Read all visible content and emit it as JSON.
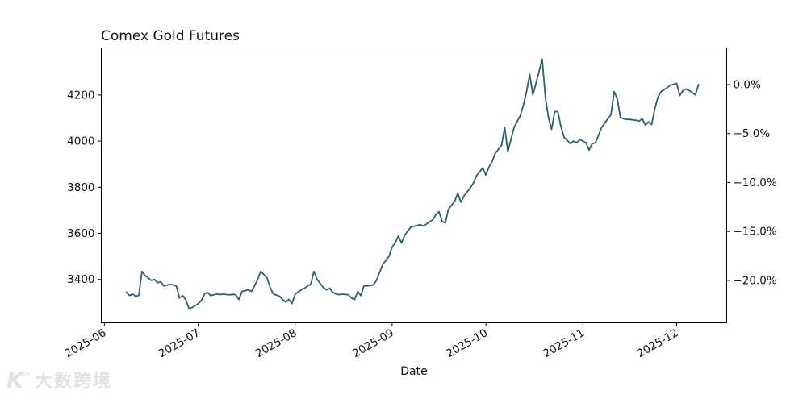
{
  "title": "Comex Gold Futures",
  "watermark": {
    "logo": "K",
    "logo_sup": "°°",
    "text": "大数跨境"
  },
  "chart_data": {
    "type": "line",
    "title": "Comex Gold Futures",
    "xlabel": "Date",
    "ylabel_left": "",
    "ylabel_right": "",
    "grid": false,
    "legend": null,
    "line_color": "#2e5f6e",
    "line_width": 1.8,
    "axis_color": "#000000",
    "tick_label_color": "#111111",
    "xlim": [
      "2025-05-31",
      "2025-12-17"
    ],
    "ylim": [
      3212,
      4404
    ],
    "x_ticks": [
      {
        "date": "2025-06-01",
        "label": "2025-06"
      },
      {
        "date": "2025-07-01",
        "label": "2025-07"
      },
      {
        "date": "2025-08-01",
        "label": "2025-08"
      },
      {
        "date": "2025-09-01",
        "label": "2025-09"
      },
      {
        "date": "2025-10-01",
        "label": "2025-10"
      },
      {
        "date": "2025-11-01",
        "label": "2025-11"
      },
      {
        "date": "2025-12-01",
        "label": "2025-12"
      }
    ],
    "y_ticks_left": [
      3400,
      3600,
      3800,
      4000,
      4200
    ],
    "y_ticks_right": [
      {
        "pct": 0,
        "label": "0.0%"
      },
      {
        "pct": -5,
        "label": "−5.0%"
      },
      {
        "pct": -10,
        "label": "−10.0%"
      },
      {
        "pct": -15,
        "label": "−15.0%"
      },
      {
        "pct": -20,
        "label": "−20.0%"
      }
    ],
    "right_axis_reference_price": 4245,
    "x": [
      "2025-06-08",
      "2025-06-09",
      "2025-06-10",
      "2025-06-11",
      "2025-06-12",
      "2025-06-13",
      "2025-06-14",
      "2025-06-16",
      "2025-06-17",
      "2025-06-18",
      "2025-06-19",
      "2025-06-20",
      "2025-06-22",
      "2025-06-23",
      "2025-06-24",
      "2025-06-25",
      "2025-06-26",
      "2025-06-27",
      "2025-06-28",
      "2025-06-29",
      "2025-07-01",
      "2025-07-02",
      "2025-07-03",
      "2025-07-04",
      "2025-07-05",
      "2025-07-07",
      "2025-07-08",
      "2025-07-09",
      "2025-07-11",
      "2025-07-12",
      "2025-07-13",
      "2025-07-14",
      "2025-07-15",
      "2025-07-17",
      "2025-07-18",
      "2025-07-19",
      "2025-07-20",
      "2025-07-21",
      "2025-07-23",
      "2025-07-24",
      "2025-07-25",
      "2025-07-27",
      "2025-07-28",
      "2025-07-29",
      "2025-07-30",
      "2025-07-31",
      "2025-08-01",
      "2025-08-03",
      "2025-08-04",
      "2025-08-05",
      "2025-08-06",
      "2025-08-07",
      "2025-08-08",
      "2025-08-10",
      "2025-08-11",
      "2025-08-12",
      "2025-08-13",
      "2025-08-14",
      "2025-08-15",
      "2025-08-16",
      "2025-08-18",
      "2025-08-19",
      "2025-08-20",
      "2025-08-21",
      "2025-08-22",
      "2025-08-23",
      "2025-08-24",
      "2025-08-25",
      "2025-08-26",
      "2025-08-27",
      "2025-08-28",
      "2025-08-29",
      "2025-08-31",
      "2025-09-01",
      "2025-09-02",
      "2025-09-03",
      "2025-09-04",
      "2025-09-05",
      "2025-09-06",
      "2025-09-07",
      "2025-09-09",
      "2025-09-10",
      "2025-09-11",
      "2025-09-12",
      "2025-09-14",
      "2025-09-15",
      "2025-09-16",
      "2025-09-17",
      "2025-09-18",
      "2025-09-19",
      "2025-09-21",
      "2025-09-22",
      "2025-09-23",
      "2025-09-24",
      "2025-09-26",
      "2025-09-27",
      "2025-09-28",
      "2025-09-30",
      "2025-10-01",
      "2025-10-02",
      "2025-10-03",
      "2025-10-04",
      "2025-10-06",
      "2025-10-07",
      "2025-10-08",
      "2025-10-09",
      "2025-10-10",
      "2025-10-12",
      "2025-10-13",
      "2025-10-14",
      "2025-10-15",
      "2025-10-16",
      "2025-10-17",
      "2025-10-19",
      "2025-10-20",
      "2025-10-21",
      "2025-10-22",
      "2025-10-23",
      "2025-10-24",
      "2025-10-25",
      "2025-10-26",
      "2025-10-28",
      "2025-10-29",
      "2025-10-30",
      "2025-10-31",
      "2025-11-01",
      "2025-11-02",
      "2025-11-03",
      "2025-11-04",
      "2025-11-05",
      "2025-11-06",
      "2025-11-07",
      "2025-11-09",
      "2025-11-10",
      "2025-11-11",
      "2025-11-12",
      "2025-11-13",
      "2025-11-14",
      "2025-11-15",
      "2025-11-16",
      "2025-11-18",
      "2025-11-19",
      "2025-11-20",
      "2025-11-21",
      "2025-11-22",
      "2025-11-23",
      "2025-11-24",
      "2025-11-25",
      "2025-11-26",
      "2025-11-28",
      "2025-11-29",
      "2025-12-01",
      "2025-12-02",
      "2025-12-03",
      "2025-12-04",
      "2025-12-05",
      "2025-12-06",
      "2025-12-07",
      "2025-12-08"
    ],
    "y": [
      3345,
      3330,
      3336,
      3327,
      3331,
      3435,
      3417,
      3396,
      3400,
      3386,
      3390,
      3372,
      3379,
      3376,
      3372,
      3320,
      3330,
      3313,
      3275,
      3278,
      3295,
      3309,
      3337,
      3344,
      3330,
      3337,
      3334,
      3336,
      3333,
      3335,
      3334,
      3313,
      3348,
      3355,
      3348,
      3372,
      3400,
      3435,
      3407,
      3365,
      3337,
      3327,
      3313,
      3303,
      3313,
      3296,
      3337,
      3355,
      3362,
      3372,
      3379,
      3435,
      3400,
      3365,
      3355,
      3362,
      3344,
      3337,
      3334,
      3336,
      3334,
      3320,
      3313,
      3348,
      3330,
      3372,
      3372,
      3374,
      3376,
      3396,
      3430,
      3465,
      3500,
      3540,
      3560,
      3589,
      3558,
      3592,
      3610,
      3627,
      3634,
      3638,
      3631,
      3641,
      3659,
      3680,
      3694,
      3652,
      3645,
      3704,
      3739,
      3774,
      3735,
      3763,
      3797,
      3818,
      3850,
      3884,
      3853,
      3888,
      3912,
      3947,
      3982,
      4059,
      3954,
      4006,
      4059,
      4111,
      4156,
      4215,
      4289,
      4201,
      4250,
      4355,
      4190,
      4103,
      4051,
      4128,
      4128,
      4062,
      4017,
      3989,
      4000,
      3993,
      4007,
      4000,
      3993,
      3961,
      3989,
      3993,
      4024,
      4059,
      4097,
      4114,
      4215,
      4184,
      4103,
      4097,
      4094,
      4094,
      4090,
      4087,
      4097,
      4069,
      4083,
      4072,
      4140,
      4190,
      4215,
      4232,
      4243,
      4250,
      4198,
      4219,
      4226,
      4219,
      4210,
      4201,
      4245
    ]
  }
}
